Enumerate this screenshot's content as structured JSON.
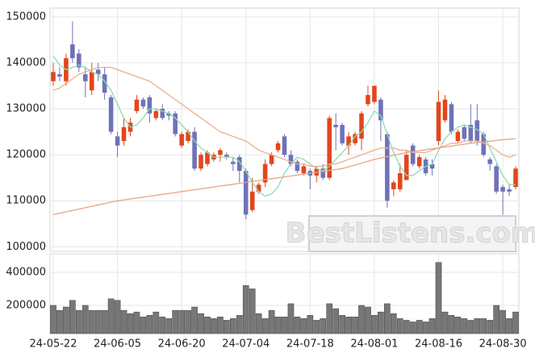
{
  "chart_data": {
    "type": "candlestick",
    "watermark": "BestListens.com",
    "categories": [
      "24-05-22",
      null,
      null,
      null,
      null,
      null,
      null,
      null,
      null,
      null,
      "24-06-05",
      null,
      null,
      null,
      null,
      null,
      null,
      null,
      null,
      null,
      "24-06-20",
      null,
      null,
      null,
      null,
      null,
      null,
      null,
      null,
      null,
      "24-07-04",
      null,
      null,
      null,
      null,
      null,
      null,
      null,
      null,
      null,
      "24-07-18",
      null,
      null,
      null,
      null,
      null,
      null,
      null,
      null,
      null,
      "24-08-01",
      null,
      null,
      null,
      null,
      null,
      null,
      null,
      null,
      null,
      "24-08-16",
      null,
      null,
      null,
      null,
      null,
      null,
      null,
      null,
      null,
      "24-08-30",
      null,
      null
    ],
    "open": [
      136000,
      137500,
      136000,
      144000,
      142000,
      137500,
      134000,
      138500,
      137500,
      132500,
      124000,
      123000,
      125000,
      129500,
      132000,
      132500,
      128000,
      130000,
      129000,
      129000,
      122000,
      123000,
      125000,
      117000,
      118000,
      119000,
      120000,
      120000,
      118500,
      119500,
      116500,
      108000,
      112000,
      114000,
      118000,
      121000,
      124000,
      120000,
      118500,
      116000,
      116500,
      115500,
      117000,
      115000,
      126500,
      126500,
      122000,
      122500,
      123500,
      131000,
      131500,
      132000,
      124500,
      112500,
      112500,
      114500,
      122000,
      117500,
      119000,
      118000,
      123000,
      127500,
      131000,
      123000,
      126000,
      126500,
      127500,
      124500,
      119000,
      117500,
      113000,
      112500,
      113000
    ],
    "high": [
      140000,
      139000,
      142000,
      149000,
      143000,
      139000,
      140000,
      140000,
      139000,
      133000,
      125000,
      128000,
      128000,
      133000,
      132500,
      133000,
      130000,
      131000,
      129500,
      129500,
      125000,
      125500,
      126000,
      120500,
      121000,
      120500,
      121500,
      120500,
      119500,
      120000,
      117000,
      115000,
      114000,
      119000,
      120500,
      123000,
      124500,
      121000,
      119000,
      118000,
      117000,
      117500,
      118000,
      128500,
      129000,
      127000,
      125000,
      125000,
      129500,
      135000,
      135000,
      132500,
      125000,
      114500,
      118000,
      121000,
      122500,
      120000,
      119500,
      119000,
      134000,
      133000,
      131500,
      125500,
      126500,
      131000,
      131000,
      125000,
      119500,
      118000,
      113500,
      113500,
      117500
    ],
    "low": [
      135000,
      136000,
      135000,
      140000,
      138000,
      132500,
      133000,
      136000,
      132000,
      124500,
      119500,
      122000,
      124000,
      129000,
      130000,
      127000,
      127500,
      127500,
      127500,
      124000,
      121500,
      122500,
      116500,
      116500,
      117500,
      118500,
      118500,
      119000,
      116500,
      114000,
      106000,
      107500,
      111500,
      113000,
      117500,
      120500,
      119500,
      117500,
      116000,
      115500,
      112500,
      114000,
      114500,
      114500,
      121000,
      122000,
      120000,
      122000,
      121000,
      130500,
      131000,
      123000,
      108500,
      111000,
      112000,
      114500,
      117500,
      117000,
      115500,
      115500,
      122000,
      127000,
      124500,
      122500,
      123000,
      122500,
      122000,
      119500,
      116500,
      111500,
      107000,
      111000,
      112500
    ],
    "close": [
      138000,
      137000,
      141000,
      141000,
      139000,
      136000,
      138000,
      137500,
      133500,
      125000,
      122000,
      126000,
      127000,
      132000,
      130500,
      129000,
      129500,
      128000,
      128500,
      124500,
      124500,
      125000,
      117000,
      120000,
      120500,
      120000,
      121000,
      119500,
      118000,
      116500,
      107000,
      112000,
      113500,
      118000,
      120000,
      122500,
      120000,
      118000,
      116500,
      117500,
      115500,
      117000,
      115000,
      128000,
      126000,
      122500,
      124000,
      124500,
      129000,
      133000,
      135000,
      127500,
      110000,
      114000,
      116000,
      120000,
      118000,
      119500,
      116000,
      117000,
      131500,
      132000,
      125000,
      125000,
      123500,
      123000,
      123000,
      120000,
      118000,
      112000,
      112000,
      112000,
      117000
    ],
    "up_color": "#e2461c",
    "down_color": "#6e72b8",
    "moving_averages": [
      {
        "color": "#8fd9b6",
        "values": [
          141500,
          139500,
          138500,
          139000,
          139500,
          139000,
          138000,
          137500,
          136000,
          134000,
          131000,
          128000,
          126000,
          126500,
          128000,
          130000,
          130000,
          129500,
          129000,
          128000,
          126500,
          125000,
          123000,
          121500,
          120500,
          119500,
          119500,
          119500,
          119500,
          118500,
          116500,
          114000,
          112000,
          111000,
          111500,
          113000,
          116000,
          118000,
          119500,
          119000,
          118000,
          117000,
          116500,
          117500,
          119000,
          120500,
          122000,
          124000,
          125000,
          127000,
          129500,
          128500,
          124500,
          120500,
          117500,
          115500,
          115500,
          116500,
          117500,
          118000,
          121000,
          123500,
          125000,
          126000,
          126500,
          126000,
          125500,
          124500,
          121500,
          118500,
          115500,
          113500,
          113500
        ]
      },
      {
        "color": "#eab08e",
        "values": [
          134000,
          134500,
          135500,
          136500,
          137500,
          138000,
          138500,
          139000,
          139000,
          139000,
          138500,
          138000,
          137500,
          137000,
          136500,
          136000,
          135000,
          134000,
          133000,
          132000,
          131000,
          130000,
          129000,
          128000,
          127000,
          126000,
          125000,
          124500,
          124000,
          123500,
          123000,
          122000,
          121000,
          120500,
          120000,
          119500,
          119000,
          118500,
          118000,
          118000,
          117500,
          117500,
          117500,
          118000,
          118000,
          118500,
          119000,
          119500,
          120000,
          120500,
          121000,
          121500,
          121500,
          121500,
          121000,
          121000,
          120500,
          120500,
          120500,
          121000,
          121500,
          122000,
          122500,
          122500,
          123000,
          123000,
          123000,
          122500,
          122000,
          121000,
          120000,
          119500,
          120000
        ]
      },
      {
        "color": "#e6a585",
        "values": [
          107000,
          107300,
          107600,
          107900,
          108200,
          108500,
          108800,
          109100,
          109400,
          109700,
          110000,
          110200,
          110400,
          110600,
          110800,
          111000,
          111200,
          111400,
          111600,
          111800,
          112000,
          112200,
          112400,
          112600,
          112800,
          113000,
          113200,
          113400,
          113600,
          113800,
          114000,
          114200,
          114400,
          114600,
          114800,
          115000,
          115200,
          115400,
          115600,
          115800,
          116000,
          116200,
          116400,
          116600,
          116800,
          117000,
          117400,
          117800,
          118200,
          118600,
          119000,
          119300,
          119600,
          119900,
          120200,
          120500,
          120700,
          120900,
          121100,
          121300,
          121500,
          121700,
          121900,
          122100,
          122300,
          122500,
          122650,
          122800,
          122950,
          123100,
          123300,
          123400,
          123500
        ]
      }
    ],
    "ylim": [
      99000,
      151900
    ],
    "yticks": [
      100000,
      110000,
      120000,
      130000,
      140000,
      150000
    ],
    "volume": [
      200000,
      170000,
      190000,
      230000,
      170000,
      200000,
      170000,
      170000,
      170000,
      240000,
      230000,
      170000,
      150000,
      160000,
      130000,
      140000,
      160000,
      130000,
      120000,
      170000,
      170000,
      170000,
      190000,
      150000,
      130000,
      120000,
      130000,
      110000,
      120000,
      140000,
      320000,
      300000,
      150000,
      120000,
      170000,
      130000,
      130000,
      210000,
      130000,
      120000,
      140000,
      110000,
      120000,
      210000,
      180000,
      140000,
      130000,
      130000,
      200000,
      190000,
      140000,
      160000,
      210000,
      150000,
      120000,
      110000,
      100000,
      110000,
      100000,
      120000,
      460000,
      160000,
      140000,
      130000,
      120000,
      110000,
      120000,
      120000,
      110000,
      200000,
      170000,
      120000,
      160000
    ],
    "volume_color": "#777777",
    "volume_ylim": [
      29000,
      512000
    ],
    "volume_yticks": [
      200000,
      400000
    ],
    "grid": true
  }
}
